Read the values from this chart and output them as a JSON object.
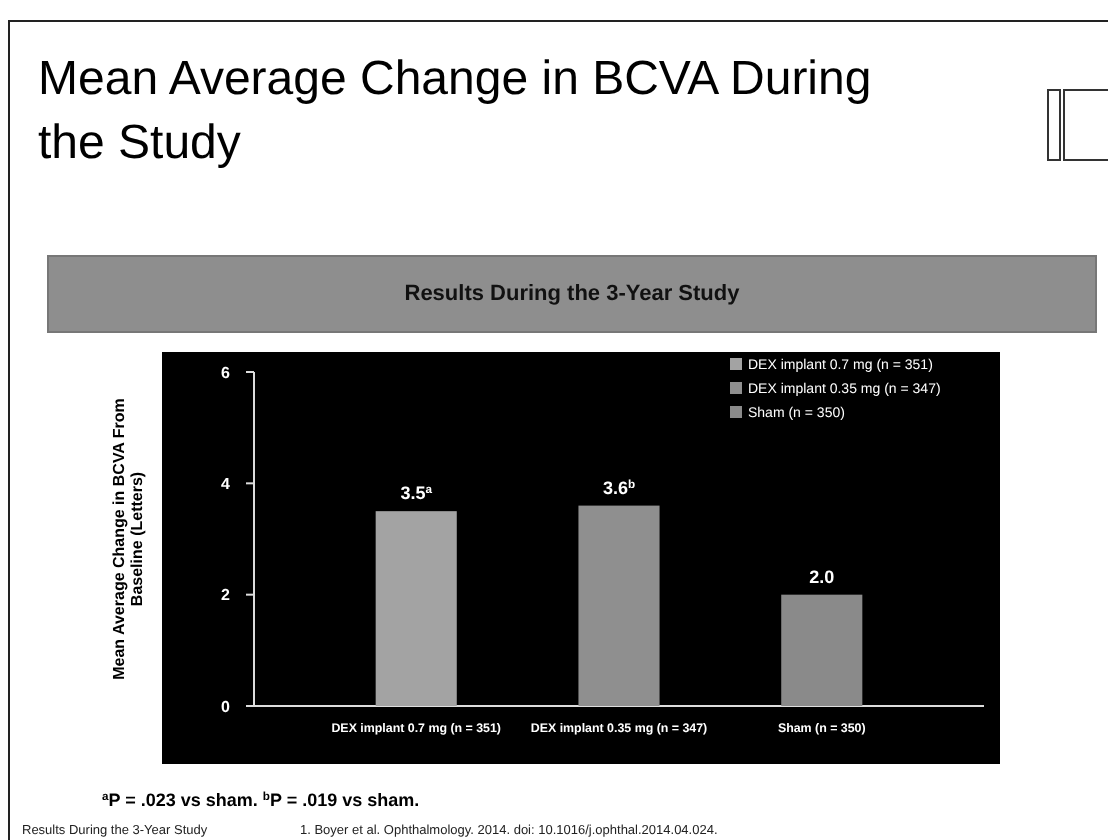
{
  "chart_data": {
    "type": "bar",
    "title": "Mean Average Change in BCVA During the Study",
    "subtitle": "Results During the 3-Year Study",
    "ylabel": "Mean Average Change in BCVA From Baseline (Letters)",
    "categories": [
      "DEX implant 0.7 mg (n = 351)",
      "DEX implant 0.35 mg (n = 347)",
      "Sham (n = 350)"
    ],
    "series": [
      {
        "name": "DEX implant 0.7 mg (n = 351)",
        "color": "#a3a3a3",
        "values": [
          3.5,
          null,
          null
        ],
        "value_labels": [
          "3.5$^{a}$",
          null,
          null
        ]
      },
      {
        "name": "DEX implant 0.35 mg (n = 347)",
        "color": "#8f8f8f",
        "values": [
          null,
          3.6,
          null
        ],
        "value_labels": [
          null,
          "3.6$^{b}$",
          null
        ]
      },
      {
        "name": "Sham (n = 350)",
        "color": "#8a8a8a",
        "values": [
          null,
          null,
          2.0
        ],
        "value_labels": [
          null,
          null,
          "2.0"
        ]
      }
    ],
    "ylim": [
      0,
      6
    ],
    "yticks": [
      0,
      2,
      4,
      6
    ],
    "grid": false,
    "legend": "top right",
    "annotations": [
      "$^{a}$P = .023 vs sham. $^{b}$P = .019 vs sham.",
      "Results During the 3-Year Study",
      "1. Boyer et al. Ophthalmology. 2014. doi: 10.1016/j.ophthal.2014.04.024."
    ]
  }
}
